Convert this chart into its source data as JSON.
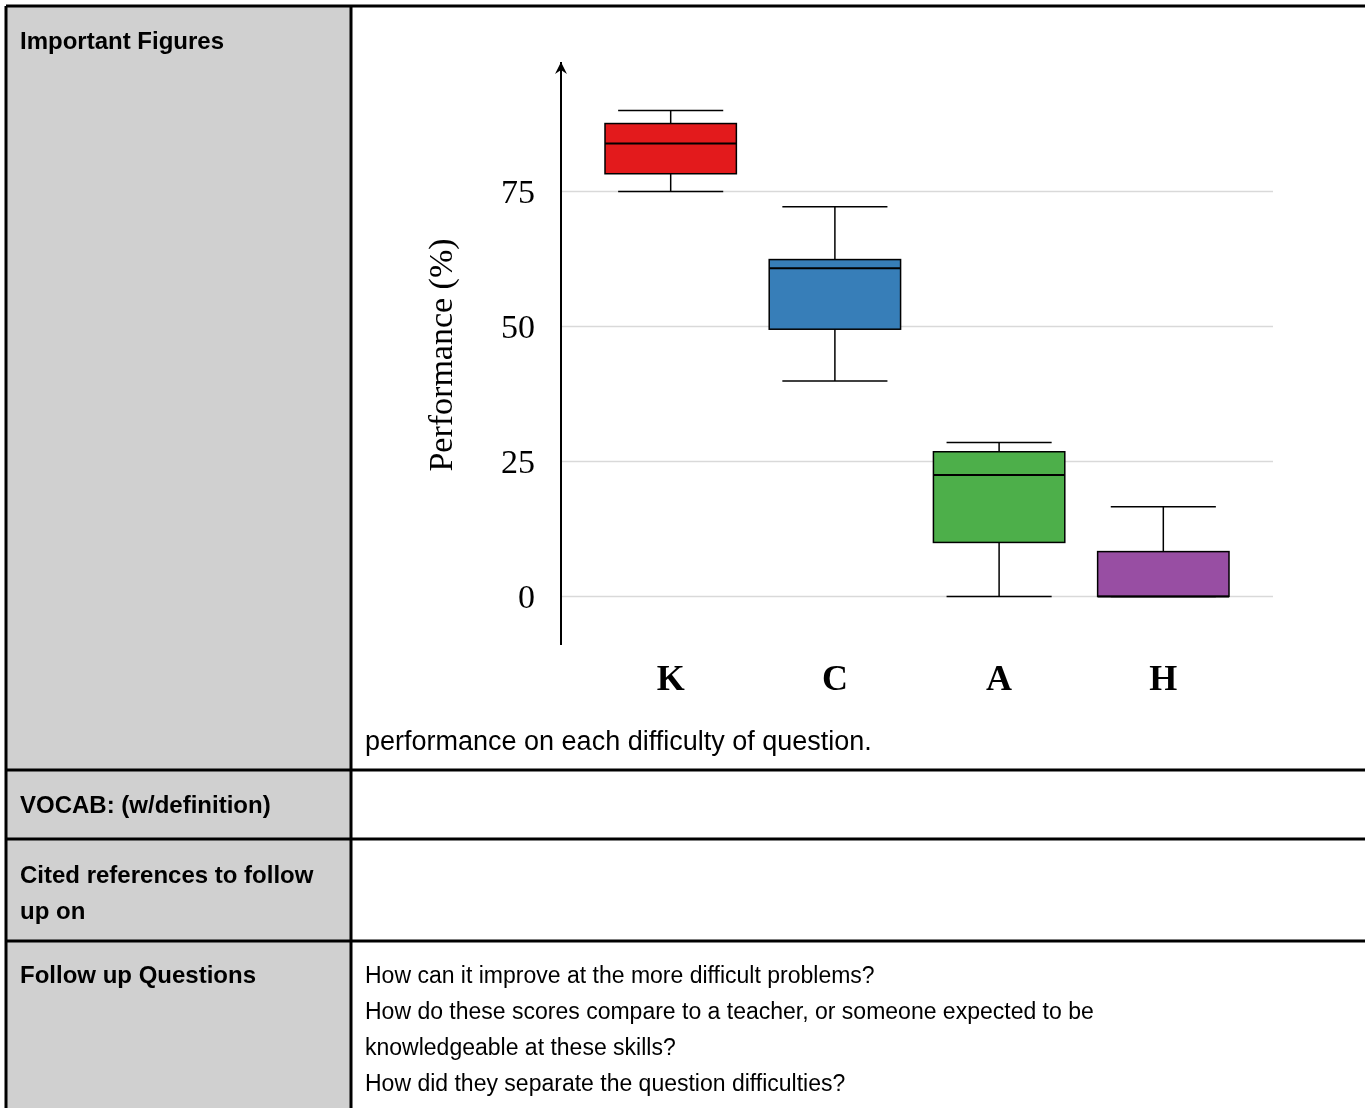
{
  "chart_data": {
    "type": "box",
    "ylabel": "Performance (%)",
    "categories": [
      "K",
      "C",
      "A",
      "H"
    ],
    "boxes": [
      {
        "low": 75,
        "q1": 78.3,
        "median": 83.9,
        "q3": 87.6,
        "high": 90
      },
      {
        "low": 39.9,
        "q1": 49.5,
        "median": 60.8,
        "q3": 62.4,
        "high": 72.2
      },
      {
        "low": 0,
        "q1": 10,
        "median": 22.5,
        "q3": 26.8,
        "high": 28.5
      },
      {
        "low": 0,
        "q1": 0,
        "median": 0,
        "q3": 8.3,
        "high": 16.6
      }
    ],
    "colors": [
      "#e31a1c",
      "#377eb8",
      "#4daf4a",
      "#984ea3"
    ],
    "ylim": [
      -9,
      99
    ],
    "yticks": [
      0,
      25,
      50,
      75
    ],
    "grid": "y",
    "annotations": [
      "Important Figures",
      "performance on each difficulty of question.",
      "VOCAB: (w/definition)",
      "Cited references to follow up on",
      "Follow up Questions",
      "How can it improve at the more difficult problems?",
      "How do these scores compare to a teacher, or someone expected to be",
      "knowledgeable at these skills?",
      "How did they separate the question difficulties?"
    ]
  }
}
